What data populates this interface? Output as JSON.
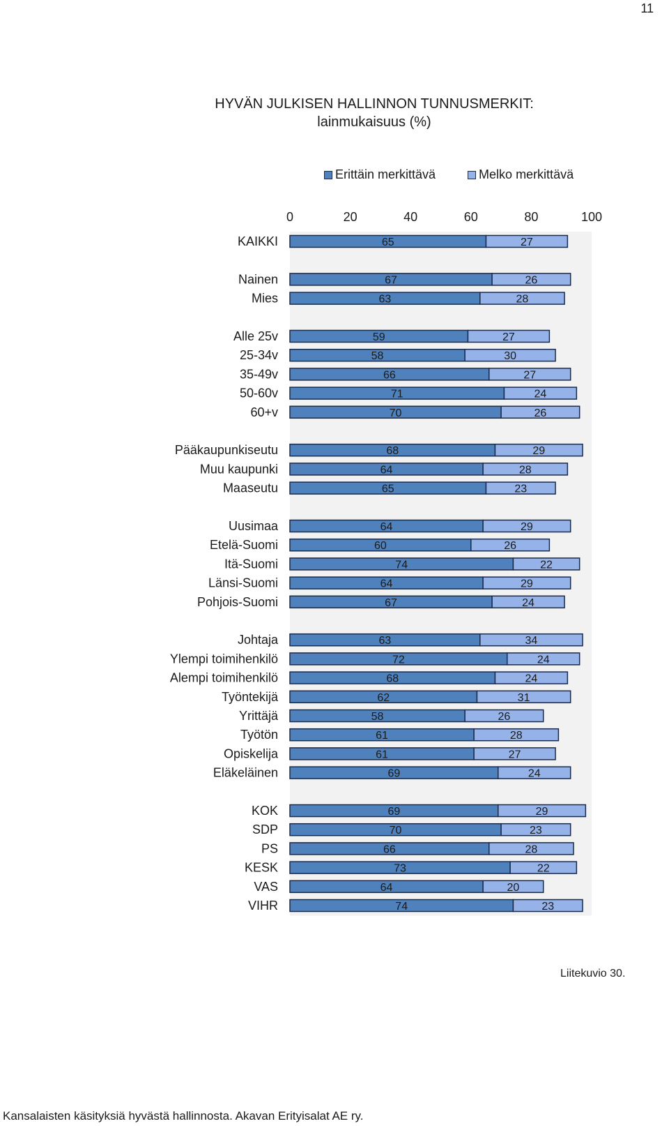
{
  "page": {
    "number": "11"
  },
  "caption": "Liitekuvio 30.",
  "footer": "Kansalaisten käsityksiä hyvästä hallinnosta. Akavan Erityisalat AE ry.",
  "colors": {
    "series1": "#4f81bd",
    "series2": "#95b3e8",
    "outline": "#1a2a4a",
    "plot_bg": "#f2f2f2"
  },
  "chart_data": {
    "type": "bar",
    "orientation": "horizontal",
    "stacked": true,
    "title": "HYVÄN JULKISEN HALLINNON TUNNUSMERKIT:",
    "subtitle": "lainmukaisuus (%)",
    "xlim": [
      0,
      100
    ],
    "xticks": [
      "0",
      "20",
      "40",
      "60",
      "80",
      "100"
    ],
    "legend_position": "top",
    "series": [
      {
        "name": "Erittäin merkittävä",
        "color": "#4f81bd"
      },
      {
        "name": "Melko merkittävä",
        "color": "#95b3e8"
      }
    ],
    "groups": [
      {
        "rows": [
          {
            "label": "KAIKKI",
            "values": [
              65,
              27
            ]
          }
        ]
      },
      {
        "rows": [
          {
            "label": "Nainen",
            "values": [
              67,
              26
            ]
          },
          {
            "label": "Mies",
            "values": [
              63,
              28
            ]
          }
        ]
      },
      {
        "rows": [
          {
            "label": "Alle 25v",
            "values": [
              59,
              27
            ]
          },
          {
            "label": "25-34v",
            "values": [
              58,
              30
            ]
          },
          {
            "label": "35-49v",
            "values": [
              66,
              27
            ]
          },
          {
            "label": "50-60v",
            "values": [
              71,
              24
            ]
          },
          {
            "label": "60+v",
            "values": [
              70,
              26
            ]
          }
        ]
      },
      {
        "rows": [
          {
            "label": "Pääkaupunkiseutu",
            "values": [
              68,
              29
            ]
          },
          {
            "label": "Muu kaupunki",
            "values": [
              64,
              28
            ]
          },
          {
            "label": "Maaseutu",
            "values": [
              65,
              23
            ]
          }
        ]
      },
      {
        "rows": [
          {
            "label": "Uusimaa",
            "values": [
              64,
              29
            ]
          },
          {
            "label": "Etelä-Suomi",
            "values": [
              60,
              26
            ]
          },
          {
            "label": "Itä-Suomi",
            "values": [
              74,
              22
            ]
          },
          {
            "label": "Länsi-Suomi",
            "values": [
              64,
              29
            ]
          },
          {
            "label": "Pohjois-Suomi",
            "values": [
              67,
              24
            ]
          }
        ]
      },
      {
        "rows": [
          {
            "label": "Johtaja",
            "values": [
              63,
              34
            ]
          },
          {
            "label": "Ylempi toimihenkilö",
            "values": [
              72,
              24
            ]
          },
          {
            "label": "Alempi toimihenkilö",
            "values": [
              68,
              24
            ]
          },
          {
            "label": "Työntekijä",
            "values": [
              62,
              31
            ]
          },
          {
            "label": "Yrittäjä",
            "values": [
              58,
              26
            ]
          },
          {
            "label": "Työtön",
            "values": [
              61,
              28
            ]
          },
          {
            "label": "Opiskelija",
            "values": [
              61,
              27
            ]
          },
          {
            "label": "Eläkeläinen",
            "values": [
              69,
              24
            ]
          }
        ]
      },
      {
        "rows": [
          {
            "label": "KOK",
            "values": [
              69,
              29
            ]
          },
          {
            "label": "SDP",
            "values": [
              70,
              23
            ]
          },
          {
            "label": "PS",
            "values": [
              66,
              28
            ]
          },
          {
            "label": "KESK",
            "values": [
              73,
              22
            ]
          },
          {
            "label": "VAS",
            "values": [
              64,
              20
            ]
          },
          {
            "label": "VIHR",
            "values": [
              74,
              23
            ]
          }
        ]
      }
    ]
  }
}
